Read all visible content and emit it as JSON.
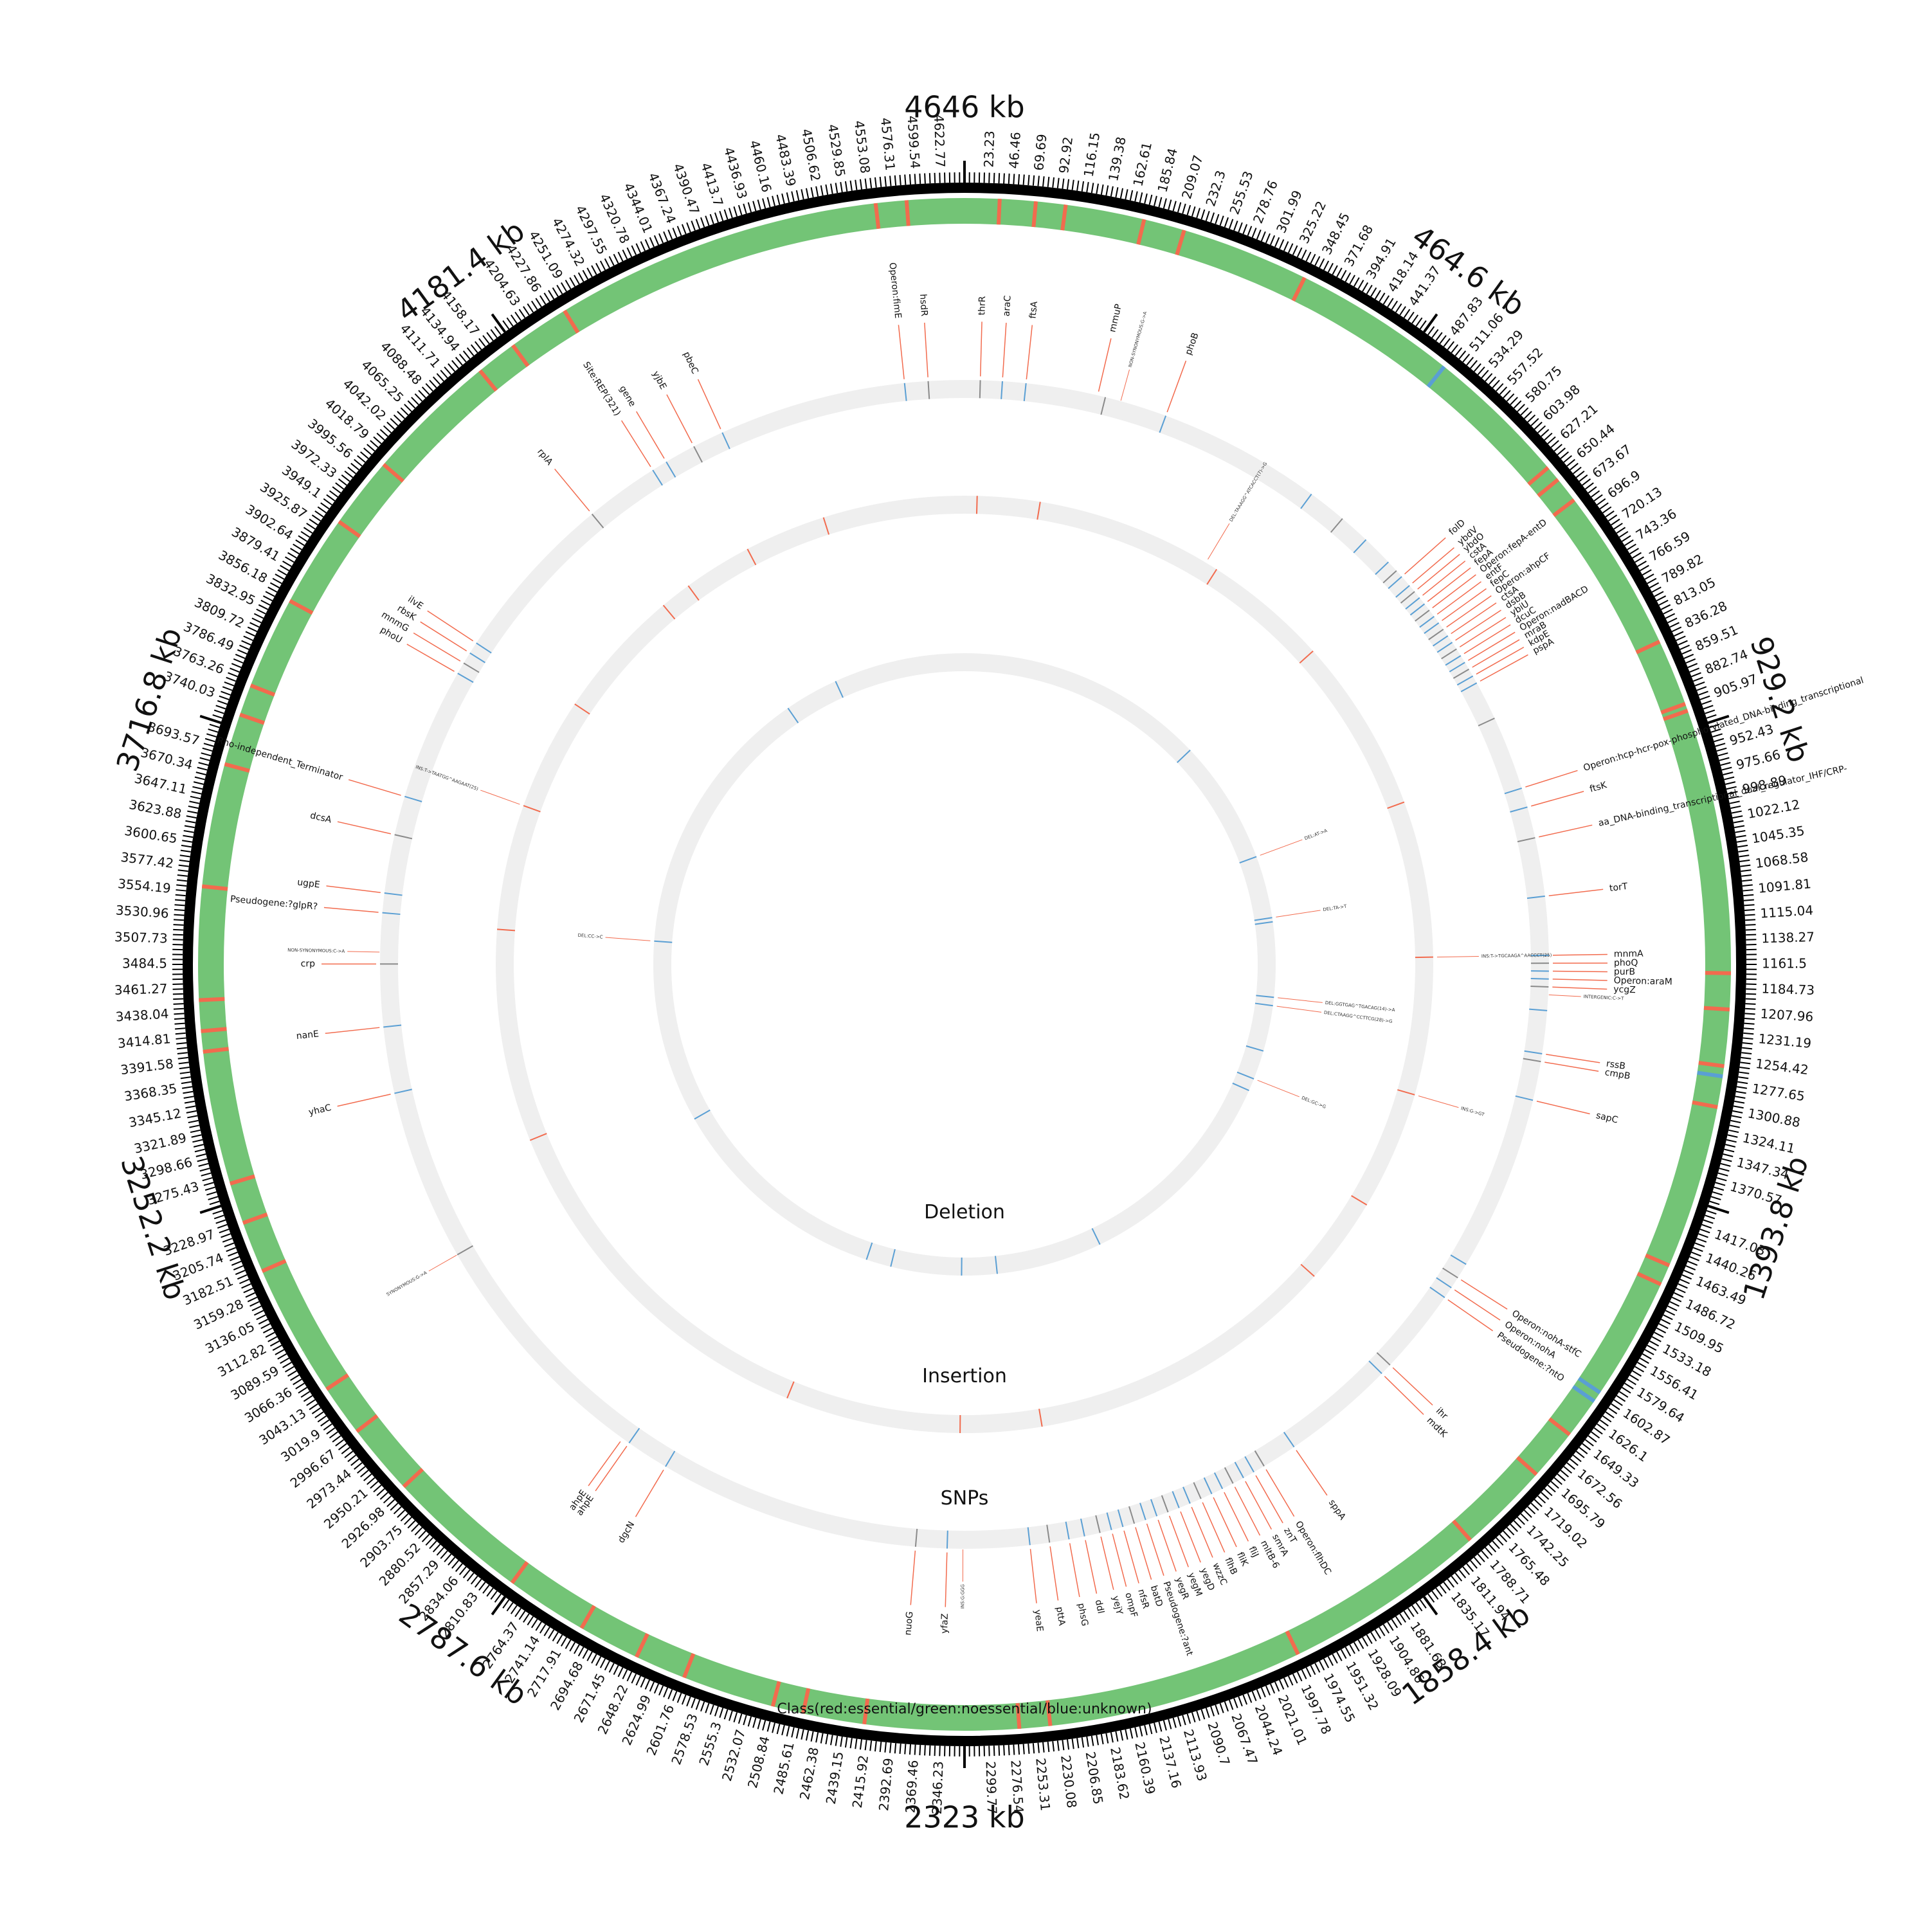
{
  "genome": {
    "length_kb": 4646,
    "major_labels": [
      "4646 kb",
      "464.6 kb",
      "929.2 kb",
      "1393.8 kb",
      "1858.4 kb",
      "2323 kb",
      "2787.6 kb",
      "3252.2 kb",
      "3716.8 kb",
      "4181.4 kb"
    ],
    "tick_labels": [
      "23.23",
      "46.46",
      "69.69",
      "92.92",
      "116.15",
      "139.38",
      "162.61",
      "185.84",
      "209.07",
      "232.3",
      "255.53",
      "278.76",
      "301.99",
      "325.22",
      "348.45",
      "371.68",
      "394.91",
      "418.14",
      "441.37",
      "487.83",
      "511.06",
      "534.29",
      "557.52",
      "580.75",
      "603.98",
      "627.21",
      "650.44",
      "673.67",
      "696.9",
      "720.13",
      "743.36",
      "766.59",
      "789.82",
      "813.05",
      "836.28",
      "859.51",
      "882.74",
      "905.97",
      "952.43",
      "975.66",
      "998.89",
      "1022.12",
      "1045.35",
      "1068.58",
      "1091.81",
      "1115.04",
      "1138.27",
      "1161.5",
      "1184.73",
      "1207.96",
      "1231.19",
      "1254.42",
      "1277.65",
      "1300.88",
      "1324.11",
      "1347.34",
      "1370.57",
      "1417.03",
      "1440.26",
      "1463.49",
      "1486.72",
      "1509.95",
      "1533.18",
      "1556.41",
      "1579.64",
      "1602.87",
      "1626.1",
      "1649.33",
      "1672.56",
      "1695.79",
      "1719.02",
      "1742.25",
      "1765.48",
      "1788.71",
      "1811.94",
      "1835.17",
      "1881.63",
      "1904.86",
      "1928.09",
      "1951.32",
      "1974.55",
      "1997.78",
      "2021.01",
      "2044.24",
      "2067.47",
      "2090.7",
      "2113.93",
      "2137.16",
      "2160.39",
      "2183.62",
      "2206.85",
      "2230.08",
      "2253.31",
      "2276.54",
      "2299.77",
      "2346.23",
      "2369.46",
      "2392.69",
      "2415.92",
      "2439.15",
      "2462.38",
      "2485.61",
      "2508.84",
      "2532.07",
      "2555.3",
      "2578.53",
      "2601.76",
      "2624.99",
      "2648.22",
      "2671.45",
      "2694.68",
      "2717.91",
      "2741.14",
      "2764.37",
      "2810.83",
      "2834.06",
      "2857.29",
      "2880.52",
      "2903.75",
      "2926.98",
      "2950.21",
      "2973.44",
      "2996.67",
      "3019.9",
      "3043.13",
      "3066.36",
      "3089.59",
      "3112.82",
      "3136.05",
      "3159.28",
      "3182.51",
      "3205.74",
      "3228.97",
      "3275.43",
      "3298.66",
      "3321.89",
      "3345.12",
      "3368.35",
      "3391.58",
      "3414.81",
      "3438.04",
      "3461.27",
      "3484.5",
      "3507.73",
      "3530.96",
      "3554.19",
      "3577.42",
      "3600.65",
      "3623.88",
      "3647.11",
      "3670.34",
      "3693.57",
      "3740.03",
      "3763.26",
      "3786.49",
      "3809.72",
      "3832.95",
      "3856.18",
      "3879.41",
      "3902.64",
      "3925.87",
      "3949.1",
      "3972.33",
      "3995.56",
      "4018.79",
      "4042.02",
      "4065.25",
      "4088.48",
      "4111.71",
      "4134.94",
      "4158.17",
      "4204.63",
      "4227.86",
      "4251.09",
      "4274.32",
      "4297.55",
      "4320.78",
      "4344.01",
      "4367.24",
      "4390.47",
      "4413.7",
      "4436.93",
      "4460.16",
      "4483.39",
      "4506.62",
      "4529.85",
      "4553.08",
      "4576.31",
      "4599.54",
      "4622.77"
    ]
  },
  "tracks": {
    "snps_label": "SNPs",
    "insertion_label": "Insertion",
    "deletion_label": "Deletion",
    "class_label": "Class(red:essential/green:noessential/blue:unknown)"
  },
  "colors": {
    "essential": "#f26b4e",
    "nonessential": "#73c476",
    "unknown": "#5a9fd4",
    "track_bg": "#efefef",
    "ruler": "#000000",
    "link_line": "#f26b4e"
  },
  "essential_bands_kb": [
    34,
    69,
    98,
    175,
    215,
    340,
    640,
    655,
    680,
    840,
    905,
    912,
    1170,
    1205,
    1260,
    1300,
    1460,
    1480,
    1650,
    1700,
    1790,
    1990,
    2240,
    2270,
    2420,
    2480,
    2510,
    2600,
    2650,
    2710,
    2790,
    2930,
    3000,
    3050,
    3180,
    3230,
    3270,
    3400,
    3420,
    3450,
    3560,
    3680,
    3730,
    3760,
    3850,
    3940,
    4010,
    4140,
    4180,
    4240,
    4560,
    4590
  ],
  "unknown_bands_kb": [
    500,
    1270,
    1600,
    1610
  ],
  "gene_labels": [
    {
      "kb": 4570,
      "text": "Operon:fimE"
    },
    {
      "kb": 4600,
      "text": "hsdR"
    },
    {
      "kb": 20,
      "text": "thrR"
    },
    {
      "kb": 48,
      "text": "araC"
    },
    {
      "kb": 78,
      "text": "ftsA"
    },
    {
      "kb": 170,
      "text": "mmuP"
    },
    {
      "kb": 260,
      "text": "phoB"
    },
    {
      "kb": 625,
      "text": "folD"
    },
    {
      "kb": 640,
      "text": "ybdV"
    },
    {
      "kb": 650,
      "text": "ybdO"
    },
    {
      "kb": 660,
      "text": "cstA"
    },
    {
      "kb": 670,
      "text": "fepA"
    },
    {
      "kb": 680,
      "text": "Operon:fepA-entD"
    },
    {
      "kb": 690,
      "text": "entF"
    },
    {
      "kb": 700,
      "text": "fepC"
    },
    {
      "kb": 710,
      "text": "Operon:ahpCF"
    },
    {
      "kb": 720,
      "text": "ctsA"
    },
    {
      "kb": 730,
      "text": "dsbB"
    },
    {
      "kb": 740,
      "text": "ybiU"
    },
    {
      "kb": 750,
      "text": "dcuC"
    },
    {
      "kb": 760,
      "text": "Operon:nadBACD"
    },
    {
      "kb": 770,
      "text": "mraB"
    },
    {
      "kb": 780,
      "text": "kdpE"
    },
    {
      "kb": 790,
      "text": "pspA"
    },
    {
      "kb": 935,
      "text": "Operon:hcp-hcr-pox-phosphorylated_DNA-binding_transcriptional"
    },
    {
      "kb": 960,
      "text": "ftsK"
    },
    {
      "kb": 1000,
      "text": "aa_DNA-binding_transcriptional_dual_regulator_IHF/CRP-"
    },
    {
      "kb": 1075,
      "text": "torT"
    },
    {
      "kb": 1150,
      "text": "mnmA"
    },
    {
      "kb": 1160,
      "text": "phoQ"
    },
    {
      "kb": 1170,
      "text": "purB"
    },
    {
      "kb": 1180,
      "text": "Operon:araM"
    },
    {
      "kb": 1190,
      "text": "ycgZ"
    },
    {
      "kb": 1275,
      "text": "rssB"
    },
    {
      "kb": 1285,
      "text": "cmpB"
    },
    {
      "kb": 1335,
      "text": "sapC"
    },
    {
      "kb": 1580,
      "text": "Operon:nohA-stfC"
    },
    {
      "kb": 1595,
      "text": "Operon:nohA"
    },
    {
      "kb": 1610,
      "text": "Pseudogene:?ntO"
    },
    {
      "kb": 1720,
      "text": "ihr"
    },
    {
      "kb": 1735,
      "text": "mdtK"
    },
    {
      "kb": 1880,
      "text": "sppA"
    },
    {
      "kb": 1925,
      "text": "Operon:flhDC"
    },
    {
      "kb": 1940,
      "text": "znT"
    },
    {
      "kb": 1955,
      "text": "smrA"
    },
    {
      "kb": 1970,
      "text": "mltB-6"
    },
    {
      "kb": 1985,
      "text": "fliJ"
    },
    {
      "kb": 2000,
      "text": "fliK"
    },
    {
      "kb": 2015,
      "text": "flhB"
    },
    {
      "kb": 2030,
      "text": "wzzC"
    },
    {
      "kb": 2045,
      "text": "yegD"
    },
    {
      "kb": 2060,
      "text": "yegM"
    },
    {
      "kb": 2075,
      "text": "yegR"
    },
    {
      "kb": 2090,
      "text": "Pseudogene:?ant"
    },
    {
      "kb": 2105,
      "text": "batD"
    },
    {
      "kb": 2120,
      "text": "nfsR"
    },
    {
      "kb": 2135,
      "text": "ompF"
    },
    {
      "kb": 2150,
      "text": "yejY"
    },
    {
      "kb": 2170,
      "text": "ddl"
    },
    {
      "kb": 2190,
      "text": "phsG"
    },
    {
      "kb": 2215,
      "text": "pttA"
    },
    {
      "kb": 2240,
      "text": "yeaE"
    },
    {
      "kb": 2345,
      "text": "yfaZ"
    },
    {
      "kb": 2385,
      "text": "nuoG"
    },
    {
      "kb": 2720,
      "text": "dgcN"
    },
    {
      "kb": 2775,
      "text": "ahpE"
    },
    {
      "kb": 2785,
      "text": "ahpE"
    },
    {
      "kb": 3320,
      "text": "yhaC"
    },
    {
      "kb": 3405,
      "text": "nanE"
    },
    {
      "kb": 3485,
      "text": "crp"
    },
    {
      "kb": 3550,
      "text": "Pseudogene:?glpR?"
    },
    {
      "kb": 3575,
      "text": "ugpE"
    },
    {
      "kb": 3650,
      "text": "dcsA"
    },
    {
      "kb": 3700,
      "text": "Rho-independent_Terminator"
    },
    {
      "kb": 3870,
      "text": "phoU"
    },
    {
      "kb": 3885,
      "text": "mnmG"
    },
    {
      "kb": 3900,
      "text": "rbsK"
    },
    {
      "kb": 3915,
      "text": "ilvE"
    },
    {
      "kb": 4135,
      "text": "rplA"
    },
    {
      "kb": 4230,
      "text": "Site:REP(321)"
    },
    {
      "kb": 4250,
      "text": "gene"
    },
    {
      "kb": 4290,
      "text": "yjbE"
    },
    {
      "kb": 4330,
      "text": "pbeC"
    }
  ],
  "mutation_labels": [
    {
      "kb": 2325,
      "ring": "snp",
      "text": "INS:G:GGG"
    },
    {
      "kb": 200,
      "ring": "snp",
      "text": "NON-SYNONYMOUS:G->A"
    },
    {
      "kb": 1200,
      "ring": "snp",
      "text": "INTERGENIC:C->T"
    },
    {
      "kb": 3500,
      "ring": "snp",
      "text": "NON-SYNONYMOUS:C->A"
    },
    {
      "kb": 3100,
      "ring": "snp",
      "text": "SYNONYMOUS:G->A"
    },
    {
      "kb": 3740,
      "ring": "ins",
      "text": "INS:T->TAATGG^AAGAAT(25)"
    },
    {
      "kb": 1150,
      "ring": "ins",
      "text": "INS:T->TGCAAGA^AACCCT(25)"
    },
    {
      "kb": 400,
      "ring": "ins",
      "text": "DEL:TAAAGG^ATCACCT(7)->G"
    },
    {
      "kb": 1370,
      "ring": "ins",
      "text": "INS:G->GT"
    },
    {
      "kb": 1240,
      "ring": "del",
      "text": "DEL:GGTGAG^TGACAG(14)->A"
    },
    {
      "kb": 1260,
      "ring": "del",
      "text": "DEL:CTAAGG^CCTTCG(28)->G"
    },
    {
      "kb": 900,
      "ring": "del",
      "text": "DEL:AT->A"
    },
    {
      "kb": 1050,
      "ring": "del",
      "text": "DEL:TA->T"
    },
    {
      "kb": 1440,
      "ring": "del",
      "text": "DEL:GC->G"
    },
    {
      "kb": 3540,
      "ring": "del",
      "text": "DEL:CC->C"
    }
  ],
  "snp_marks_kb": [
    20,
    48,
    78,
    180,
    260,
    470,
    520,
    560,
    600,
    615,
    625,
    640,
    650,
    660,
    670,
    680,
    690,
    700,
    710,
    720,
    730,
    740,
    750,
    760,
    770,
    780,
    790,
    840,
    935,
    960,
    1000,
    1075,
    1150,
    1160,
    1170,
    1180,
    1190,
    1220,
    1275,
    1285,
    1335,
    1560,
    1580,
    1595,
    1610,
    1720,
    1735,
    1880,
    1925,
    1940,
    1955,
    1970,
    1985,
    2000,
    2015,
    2030,
    2045,
    2060,
    2075,
    2090,
    2105,
    2120,
    2135,
    2150,
    2170,
    2190,
    2215,
    2240,
    2345,
    2385,
    2720,
    2775,
    3100,
    3320,
    3405,
    3485,
    3550,
    3575,
    3650,
    3700,
    3870,
    3885,
    3900,
    3915,
    4135,
    4230,
    4250,
    4290,
    4330,
    4570,
    4600
  ],
  "ins_marks_kb": [
    20,
    120,
    420,
    620,
    900,
    1150,
    1370,
    1560,
    1700,
    2200,
    2330,
    2610,
    3200,
    3540,
    3740,
    3920,
    4130,
    4180,
    4290,
    4420
  ],
  "del_marks_kb": [
    600,
    900,
    1050,
    1060,
    1240,
    1260,
    1370,
    1440,
    1470,
    1990,
    2245,
    2330,
    2500,
    2560,
    3100,
    3540,
    4200,
    4330
  ]
}
